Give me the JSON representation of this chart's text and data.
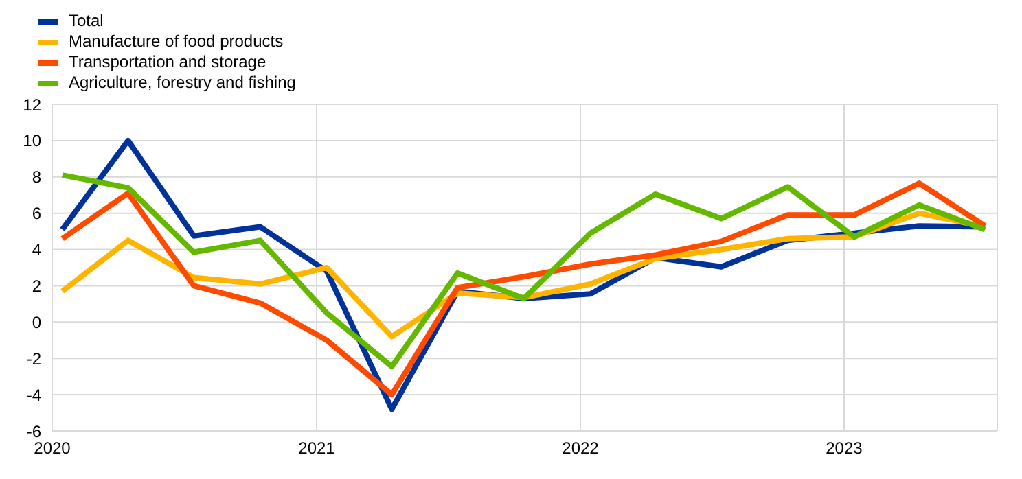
{
  "chart_data": {
    "type": "line",
    "x": [
      "2020-01-15",
      "2020-04-15",
      "2020-07-15",
      "2020-10-15",
      "2021-01-15",
      "2021-04-15",
      "2021-07-15",
      "2021-10-15",
      "2022-01-15",
      "2022-04-15",
      "2022-07-15",
      "2022-10-15",
      "2023-01-15",
      "2023-04-15",
      "2023-07-15"
    ],
    "series": [
      {
        "name": "Total",
        "color": "#003299",
        "values": [
          5.1,
          10.0,
          4.75,
          5.25,
          2.8,
          -4.8,
          1.7,
          1.3,
          1.55,
          3.55,
          3.05,
          4.5,
          4.9,
          5.3,
          5.25
        ]
      },
      {
        "name": "Manufacture of food products",
        "color": "#ffb400",
        "values": [
          1.7,
          4.5,
          2.45,
          2.1,
          3.0,
          -0.8,
          1.6,
          1.35,
          2.1,
          3.5,
          4.0,
          4.6,
          4.7,
          6.0,
          5.25
        ]
      },
      {
        "name": "Transportation and storage",
        "color": "#ff4b00",
        "values": [
          4.6,
          7.1,
          2.0,
          1.05,
          -1.0,
          -4.0,
          1.9,
          2.5,
          3.2,
          3.7,
          4.45,
          5.9,
          5.9,
          7.65,
          5.3
        ]
      },
      {
        "name": "Agriculture, forestry and fishing",
        "color": "#65b800",
        "values": [
          8.1,
          7.4,
          3.85,
          4.5,
          0.5,
          -2.45,
          2.7,
          1.3,
          4.9,
          7.05,
          5.7,
          7.45,
          4.7,
          6.45,
          5.1
        ]
      }
    ],
    "xlim": [
      "2020-01-01",
      "2023-08-01"
    ],
    "xticks": [
      {
        "value": "2020-01-01",
        "label": "2020"
      },
      {
        "value": "2021-01-01",
        "label": "2021"
      },
      {
        "value": "2022-01-01",
        "label": "2022"
      },
      {
        "value": "2023-01-01",
        "label": "2023"
      }
    ],
    "ylim": [
      -6,
      12
    ],
    "yticks": [
      -6,
      -4,
      -2,
      0,
      2,
      4,
      6,
      8,
      10,
      12
    ],
    "grid": true,
    "legend": "top left",
    "marker": "none",
    "line_style": "solid"
  }
}
